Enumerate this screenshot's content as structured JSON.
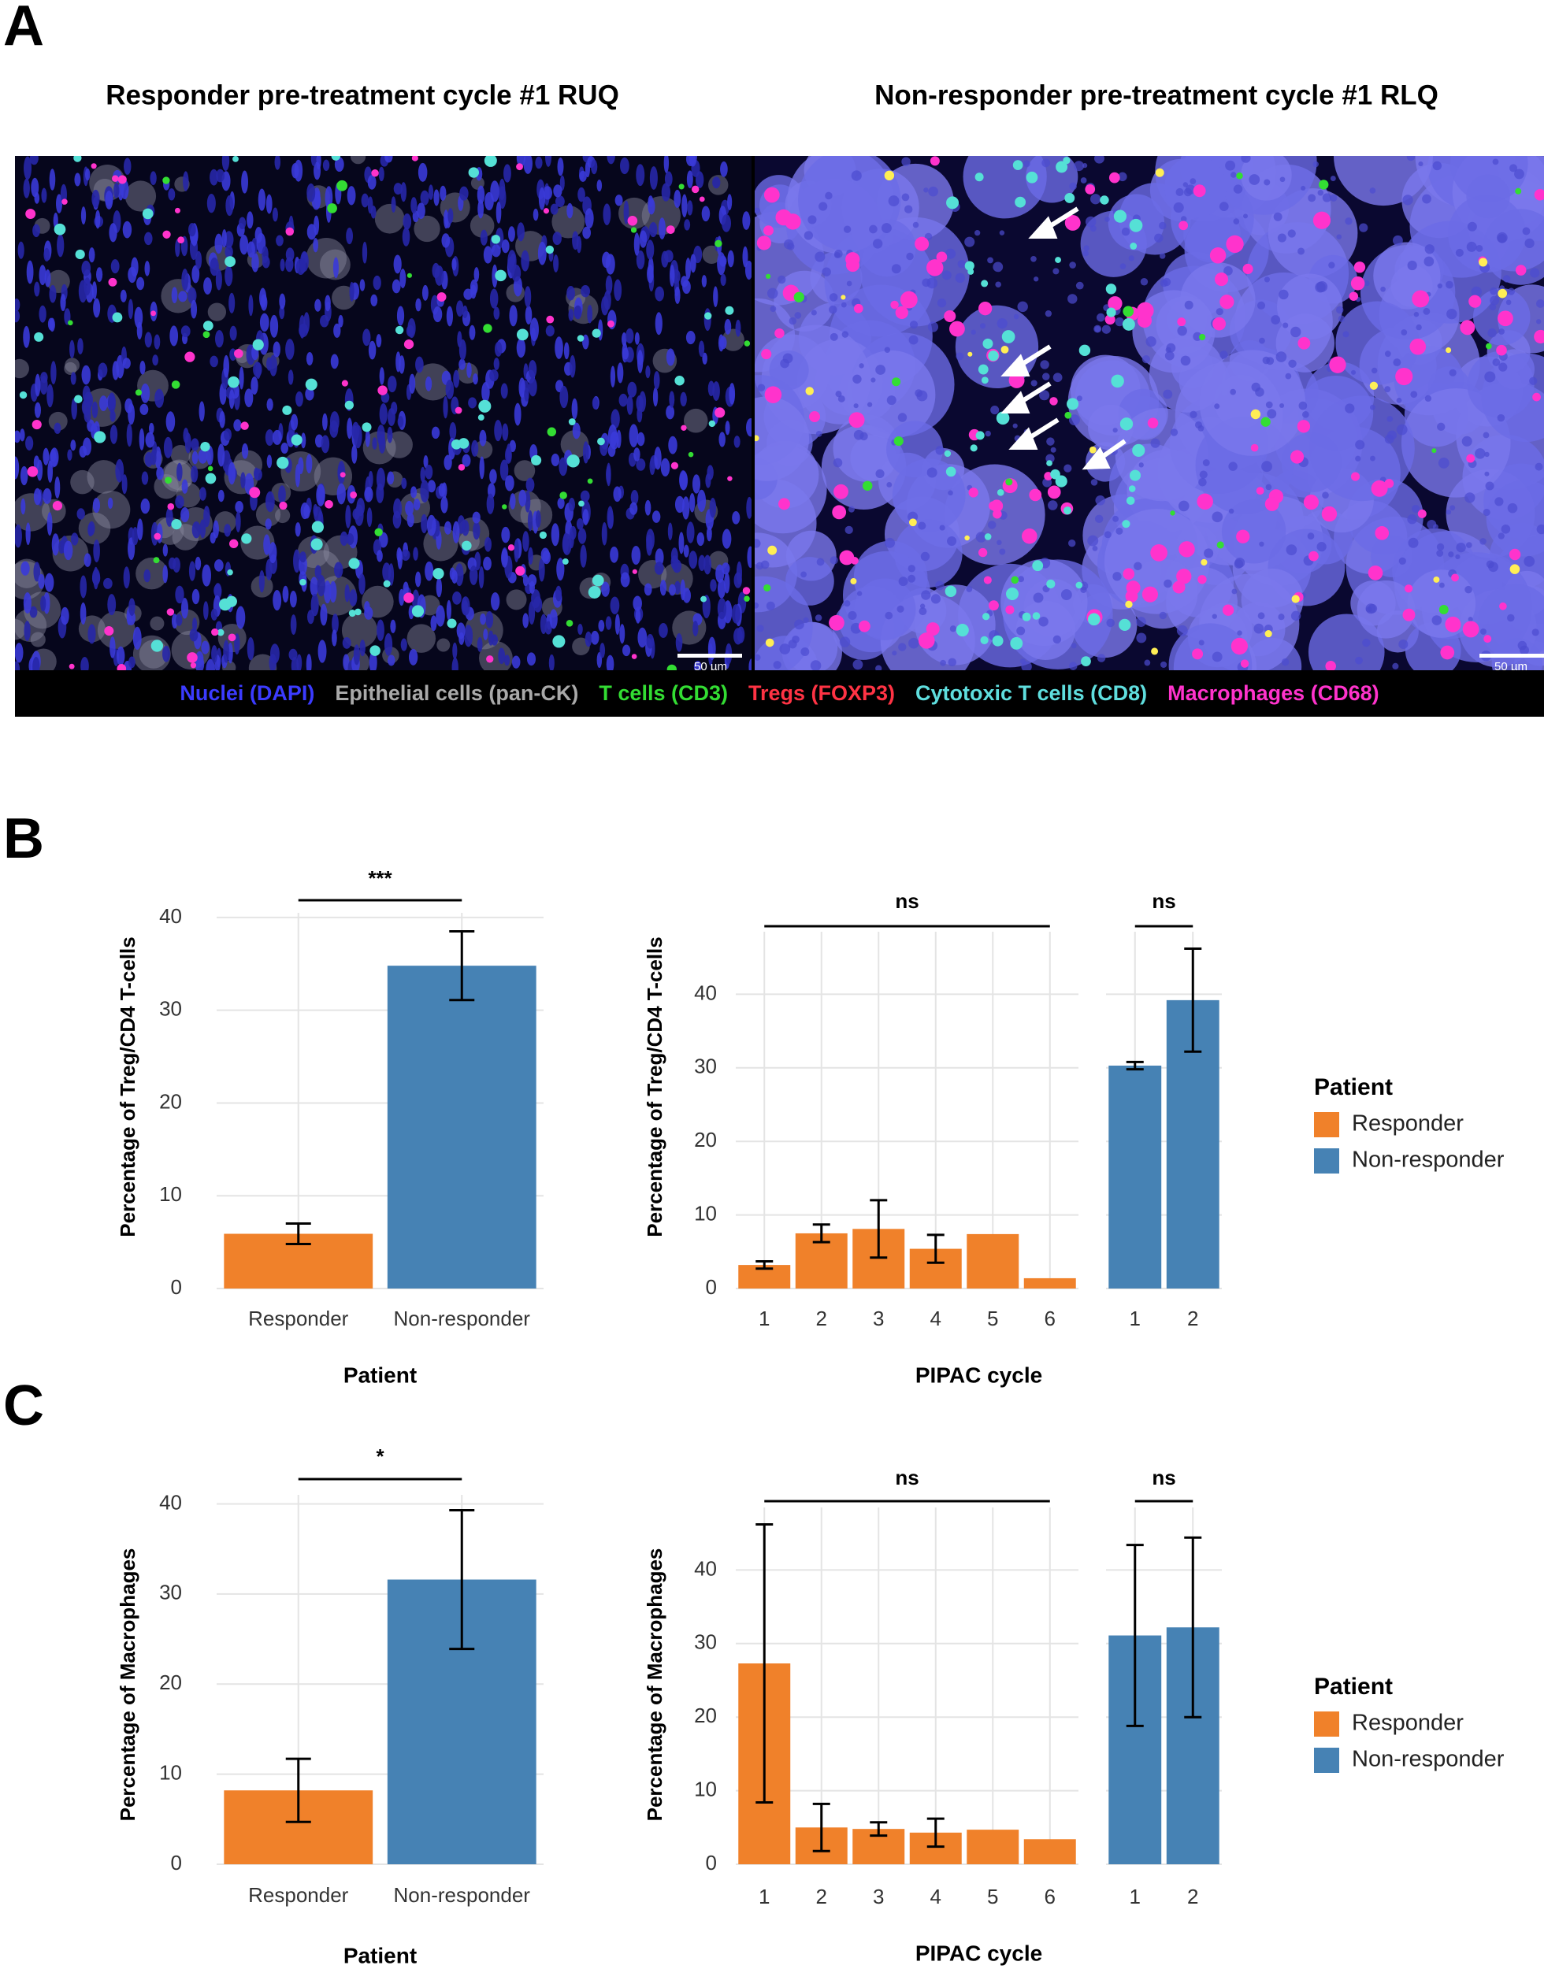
{
  "panel_labels": [
    "A",
    "B",
    "C"
  ],
  "panel_a": {
    "image_titles": [
      "Responder pre-treatment cycle #1 RUQ",
      "Non-responder pre-treatment cycle #1 RLQ"
    ],
    "scale_bars": [
      "50 µm",
      "50 µm"
    ],
    "stains": [
      {
        "text": "Nuclei (DAPI)",
        "color": "#3b3bff"
      },
      {
        "text": "Epithelial cells (pan-CK)",
        "color": "#a9a9a9"
      },
      {
        "text": "T cells (CD3)",
        "color": "#33dd33"
      },
      {
        "text": "Tregs (FOXP3)",
        "color": "#ff3344"
      },
      {
        "text": "Cytotoxic T cells (CD8)",
        "color": "#5fdede"
      },
      {
        "text": "Macrophages (CD68)",
        "color": "#ff33cc"
      }
    ]
  },
  "chart_data": [
    {
      "type": "bar",
      "xlabel": "Patient",
      "ylabel": "Percentage of Treg/CD4 T-cells",
      "categories": [
        "Responder",
        "Non-responder"
      ],
      "colors": [
        "#f0812a",
        "#4682b4"
      ],
      "values": [
        5.9,
        34.8
      ],
      "errors": [
        1.1,
        3.7
      ],
      "significance": "***",
      "ylim": [
        0,
        40.5
      ],
      "yticks": [
        0,
        10,
        20,
        30,
        40
      ],
      "grid": true
    },
    {
      "type": "faceted_bar",
      "xlabel": "PIPAC cycle",
      "ylabel": "Percentage of Treg/CD4 T-cells",
      "legend_title": "Patient",
      "legend": "right",
      "facets": [
        {
          "categories": [
            1,
            2,
            3,
            4,
            5,
            6
          ],
          "significance": "ns",
          "series": [
            {
              "name": "Responder",
              "color": "#f0812a",
              "values": [
                3.2,
                7.5,
                8.1,
                5.4,
                7.4,
                1.4
              ],
              "errors": [
                0.5,
                1.2,
                3.9,
                1.9,
                null,
                null
              ]
            }
          ]
        },
        {
          "categories": [
            1,
            2
          ],
          "significance": "ns",
          "series": [
            {
              "name": "Non-responder",
              "color": "#4682b4",
              "values": [
                30.3,
                39.2
              ],
              "errors": [
                0.5,
                7.0
              ]
            }
          ]
        }
      ],
      "ylim": [
        0,
        48.5
      ],
      "yticks": [
        0,
        10,
        20,
        30,
        40
      ],
      "grid": true
    },
    {
      "type": "bar",
      "xlabel": "Patient",
      "ylabel": "Percentage of Macrophages",
      "categories": [
        "Responder",
        "Non-responder"
      ],
      "colors": [
        "#f0812a",
        "#4682b4"
      ],
      "values": [
        8.2,
        31.6
      ],
      "errors": [
        3.5,
        7.7
      ],
      "significance": "*",
      "ylim": [
        0,
        41
      ],
      "yticks": [
        0,
        10,
        20,
        30,
        40
      ],
      "grid": true
    },
    {
      "type": "faceted_bar",
      "xlabel": "PIPAC cycle",
      "ylabel": "Percentage of Macrophages",
      "legend_title": "Patient",
      "legend": "right",
      "facets": [
        {
          "categories": [
            1,
            2,
            3,
            4,
            5,
            6
          ],
          "significance": "ns",
          "series": [
            {
              "name": "Responder",
              "color": "#f0812a",
              "values": [
                27.3,
                5.0,
                4.8,
                4.3,
                4.7,
                3.4
              ],
              "errors": [
                18.9,
                3.2,
                0.9,
                1.9,
                null,
                null
              ]
            }
          ]
        },
        {
          "categories": [
            1,
            2
          ],
          "significance": "ns",
          "series": [
            {
              "name": "Non-responder",
              "color": "#4682b4",
              "values": [
                31.1,
                32.2
              ],
              "errors": [
                12.3,
                12.2
              ]
            }
          ]
        }
      ],
      "ylim": [
        0,
        48.5
      ],
      "yticks": [
        0,
        10,
        20,
        30,
        40
      ],
      "grid": true
    }
  ]
}
